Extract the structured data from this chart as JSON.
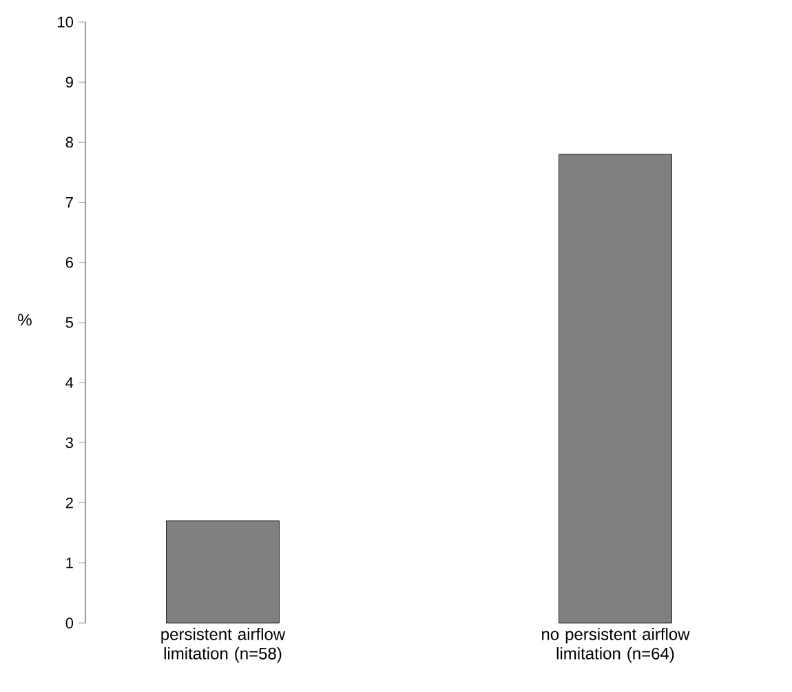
{
  "chart_data": {
    "type": "bar",
    "ylabel": "%",
    "categories": [
      "persistent airflow limitation (n=58)",
      "no persistent airflow limitation (n=64)"
    ],
    "values": [
      1.7,
      7.8
    ],
    "color": "#808080",
    "ylim": [
      0,
      10
    ],
    "yticks": [
      0,
      1,
      2,
      3,
      4,
      5,
      6,
      7,
      8,
      9,
      10
    ],
    "grid": false
  }
}
